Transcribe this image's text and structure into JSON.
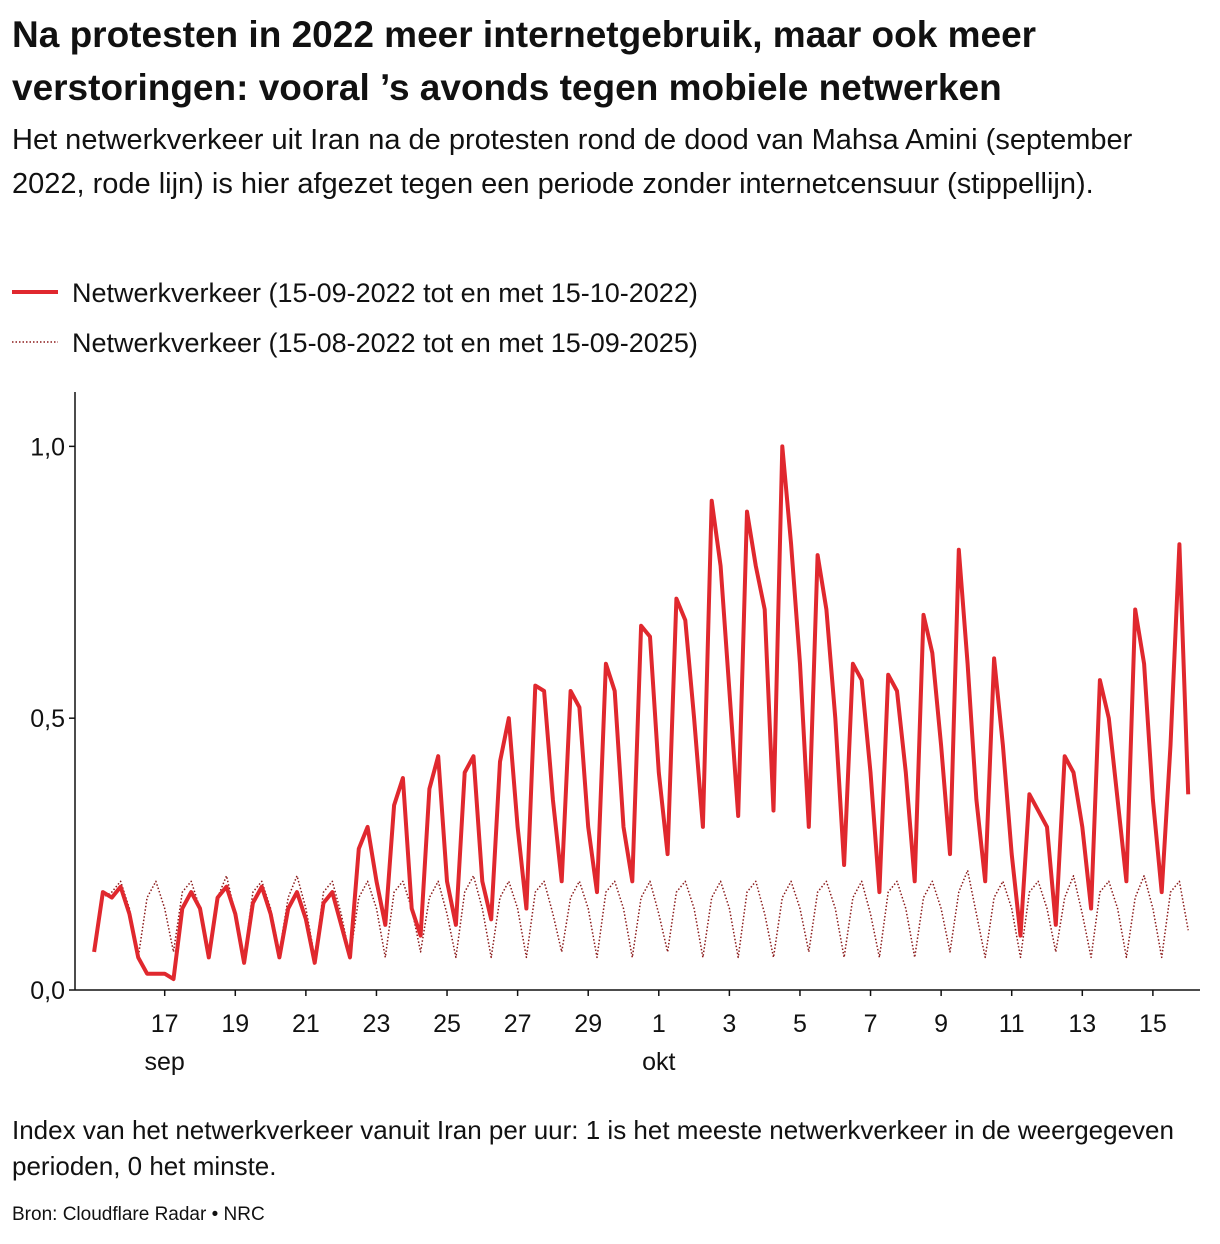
{
  "chart_data": {
    "type": "line",
    "title": "Na protesten in 2022 meer internetgebruik, maar ook meer verstoringen: vooral ’s avonds tegen mobiele netwerken",
    "subtitle": "Het netwerkverkeer uit Iran na de protesten rond de dood van Mahsa Amini (september 2022, rode lijn) is hier afgezet tegen een periode zonder internetcensuur (stippellijn).",
    "note": "Index van het netwerkverkeer vanuit Iran per uur: 1 is het meeste netwerkverkeer in de weergegeven perioden, 0 het minste.",
    "source": "Bron: Cloudflare Radar • NRC",
    "x": [
      "2022-09-15T00:00",
      "2022-09-15T06:00",
      "2022-09-15T12:00",
      "2022-09-15T18:00",
      "2022-09-16T00:00",
      "2022-09-16T06:00",
      "2022-09-16T12:00",
      "2022-09-16T18:00",
      "2022-09-17T00:00",
      "2022-09-17T06:00",
      "2022-09-17T12:00",
      "2022-09-17T18:00",
      "2022-09-18T00:00",
      "2022-09-18T06:00",
      "2022-09-18T12:00",
      "2022-09-18T18:00",
      "2022-09-19T00:00",
      "2022-09-19T06:00",
      "2022-09-19T12:00",
      "2022-09-19T18:00",
      "2022-09-20T00:00",
      "2022-09-20T06:00",
      "2022-09-20T12:00",
      "2022-09-20T18:00",
      "2022-09-21T00:00",
      "2022-09-21T06:00",
      "2022-09-21T12:00",
      "2022-09-21T18:00",
      "2022-09-22T00:00",
      "2022-09-22T06:00",
      "2022-09-22T12:00",
      "2022-09-22T18:00",
      "2022-09-23T00:00",
      "2022-09-23T06:00",
      "2022-09-23T12:00",
      "2022-09-23T18:00",
      "2022-09-24T00:00",
      "2022-09-24T06:00",
      "2022-09-24T12:00",
      "2022-09-24T18:00",
      "2022-09-25T00:00",
      "2022-09-25T06:00",
      "2022-09-25T12:00",
      "2022-09-25T18:00",
      "2022-09-26T00:00",
      "2022-09-26T06:00",
      "2022-09-26T12:00",
      "2022-09-26T18:00",
      "2022-09-27T00:00",
      "2022-09-27T06:00",
      "2022-09-27T12:00",
      "2022-09-27T18:00",
      "2022-09-28T00:00",
      "2022-09-28T06:00",
      "2022-09-28T12:00",
      "2022-09-28T18:00",
      "2022-09-29T00:00",
      "2022-09-29T06:00",
      "2022-09-29T12:00",
      "2022-09-29T18:00",
      "2022-09-30T00:00",
      "2022-09-30T06:00",
      "2022-09-30T12:00",
      "2022-09-30T18:00",
      "2022-10-01T00:00",
      "2022-10-01T06:00",
      "2022-10-01T12:00",
      "2022-10-01T18:00",
      "2022-10-02T00:00",
      "2022-10-02T06:00",
      "2022-10-02T12:00",
      "2022-10-02T18:00",
      "2022-10-03T00:00",
      "2022-10-03T06:00",
      "2022-10-03T12:00",
      "2022-10-03T18:00",
      "2022-10-04T00:00",
      "2022-10-04T06:00",
      "2022-10-04T12:00",
      "2022-10-04T18:00",
      "2022-10-05T00:00",
      "2022-10-05T06:00",
      "2022-10-05T12:00",
      "2022-10-05T18:00",
      "2022-10-06T00:00",
      "2022-10-06T06:00",
      "2022-10-06T12:00",
      "2022-10-06T18:00",
      "2022-10-07T00:00",
      "2022-10-07T06:00",
      "2022-10-07T12:00",
      "2022-10-07T18:00",
      "2022-10-08T00:00",
      "2022-10-08T06:00",
      "2022-10-08T12:00",
      "2022-10-08T18:00",
      "2022-10-09T00:00",
      "2022-10-09T06:00",
      "2022-10-09T12:00",
      "2022-10-09T18:00",
      "2022-10-10T00:00",
      "2022-10-10T06:00",
      "2022-10-10T12:00",
      "2022-10-10T18:00",
      "2022-10-11T00:00",
      "2022-10-11T06:00",
      "2022-10-11T12:00",
      "2022-10-11T18:00",
      "2022-10-12T00:00",
      "2022-10-12T06:00",
      "2022-10-12T12:00",
      "2022-10-12T18:00",
      "2022-10-13T00:00",
      "2022-10-13T06:00",
      "2022-10-13T12:00",
      "2022-10-13T18:00",
      "2022-10-14T00:00",
      "2022-10-14T06:00",
      "2022-10-14T12:00",
      "2022-10-14T18:00",
      "2022-10-15T00:00",
      "2022-10-15T06:00",
      "2022-10-15T12:00",
      "2022-10-15T18:00",
      "2022-10-16T00:00"
    ],
    "series": [
      {
        "name": "Netwerkverkeer (15-09-2022 tot en met 15-10-2022)",
        "color": "#e0282e",
        "style": "solid",
        "values": [
          0.07,
          0.18,
          0.17,
          0.19,
          0.14,
          0.06,
          0.03,
          0.03,
          0.03,
          0.02,
          0.15,
          0.18,
          0.15,
          0.06,
          0.17,
          0.19,
          0.14,
          0.05,
          0.16,
          0.19,
          0.14,
          0.06,
          0.15,
          0.18,
          0.13,
          0.05,
          0.16,
          0.18,
          0.12,
          0.06,
          0.26,
          0.3,
          0.2,
          0.12,
          0.34,
          0.39,
          0.15,
          0.1,
          0.37,
          0.43,
          0.2,
          0.12,
          0.4,
          0.43,
          0.2,
          0.13,
          0.42,
          0.5,
          0.3,
          0.15,
          0.56,
          0.55,
          0.35,
          0.2,
          0.55,
          0.52,
          0.3,
          0.18,
          0.6,
          0.55,
          0.3,
          0.2,
          0.67,
          0.65,
          0.4,
          0.25,
          0.72,
          0.68,
          0.5,
          0.3,
          0.9,
          0.78,
          0.55,
          0.32,
          0.88,
          0.78,
          0.7,
          0.33,
          1.0,
          0.82,
          0.6,
          0.3,
          0.8,
          0.7,
          0.5,
          0.23,
          0.6,
          0.57,
          0.4,
          0.18,
          0.58,
          0.55,
          0.4,
          0.2,
          0.69,
          0.62,
          0.45,
          0.25,
          0.81,
          0.6,
          0.35,
          0.2,
          0.61,
          0.45,
          0.25,
          0.1,
          0.36,
          0.33,
          0.3,
          0.12,
          0.43,
          0.4,
          0.3,
          0.15,
          0.57,
          0.5,
          0.35,
          0.2,
          0.7,
          0.6,
          0.35,
          0.18,
          0.45,
          0.82,
          0.36
        ]
      },
      {
        "name": "Netwerkverkeer (15-08-2022 tot en met 15-09-2025)",
        "color": "#8b1a1a",
        "style": "dotted",
        "values": [
          0.08,
          0.17,
          0.18,
          0.2,
          0.15,
          0.06,
          0.17,
          0.2,
          0.15,
          0.07,
          0.18,
          0.2,
          0.15,
          0.06,
          0.17,
          0.21,
          0.14,
          0.06,
          0.18,
          0.2,
          0.15,
          0.07,
          0.17,
          0.21,
          0.15,
          0.06,
          0.18,
          0.2,
          0.14,
          0.06,
          0.17,
          0.2,
          0.15,
          0.06,
          0.18,
          0.2,
          0.15,
          0.07,
          0.17,
          0.2,
          0.14,
          0.06,
          0.18,
          0.21,
          0.15,
          0.06,
          0.17,
          0.2,
          0.15,
          0.06,
          0.18,
          0.2,
          0.14,
          0.07,
          0.17,
          0.2,
          0.15,
          0.06,
          0.18,
          0.2,
          0.15,
          0.06,
          0.17,
          0.2,
          0.14,
          0.07,
          0.18,
          0.2,
          0.15,
          0.06,
          0.17,
          0.2,
          0.15,
          0.06,
          0.18,
          0.2,
          0.14,
          0.06,
          0.17,
          0.2,
          0.15,
          0.07,
          0.18,
          0.2,
          0.15,
          0.06,
          0.17,
          0.2,
          0.14,
          0.06,
          0.18,
          0.2,
          0.15,
          0.06,
          0.17,
          0.2,
          0.15,
          0.07,
          0.18,
          0.22,
          0.14,
          0.06,
          0.17,
          0.2,
          0.15,
          0.06,
          0.18,
          0.2,
          0.15,
          0.07,
          0.17,
          0.21,
          0.14,
          0.06,
          0.18,
          0.2,
          0.15,
          0.06,
          0.17,
          0.21,
          0.15,
          0.06,
          0.18,
          0.2,
          0.11
        ]
      }
    ],
    "xlim": [
      "2022-09-14T11:00",
      "2022-10-16T06:00"
    ],
    "xticks": [
      {
        "value": "2022-09-17T00:00",
        "label": "17"
      },
      {
        "value": "2022-09-19T00:00",
        "label": "19"
      },
      {
        "value": "2022-09-21T00:00",
        "label": "21"
      },
      {
        "value": "2022-09-23T00:00",
        "label": "23"
      },
      {
        "value": "2022-09-25T00:00",
        "label": "25"
      },
      {
        "value": "2022-09-27T00:00",
        "label": "27"
      },
      {
        "value": "2022-09-29T00:00",
        "label": "29"
      },
      {
        "value": "2022-10-01T00:00",
        "label": "1"
      },
      {
        "value": "2022-10-03T00:00",
        "label": "3"
      },
      {
        "value": "2022-10-05T00:00",
        "label": "5"
      },
      {
        "value": "2022-10-07T00:00",
        "label": "7"
      },
      {
        "value": "2022-10-09T00:00",
        "label": "9"
      },
      {
        "value": "2022-10-11T00:00",
        "label": "11"
      },
      {
        "value": "2022-10-13T00:00",
        "label": "13"
      },
      {
        "value": "2022-10-15T00:00",
        "label": "15"
      }
    ],
    "month_labels": [
      {
        "value": "2022-09-17T00:00",
        "label": "sep"
      },
      {
        "value": "2022-10-01T00:00",
        "label": "okt"
      }
    ],
    "ylim": [
      0,
      1.1
    ],
    "yticks": [
      {
        "value": 0,
        "label": "0,0"
      },
      {
        "value": 0.5,
        "label": "0,5"
      },
      {
        "value": 1,
        "label": "1,0"
      }
    ],
    "grid": false
  }
}
